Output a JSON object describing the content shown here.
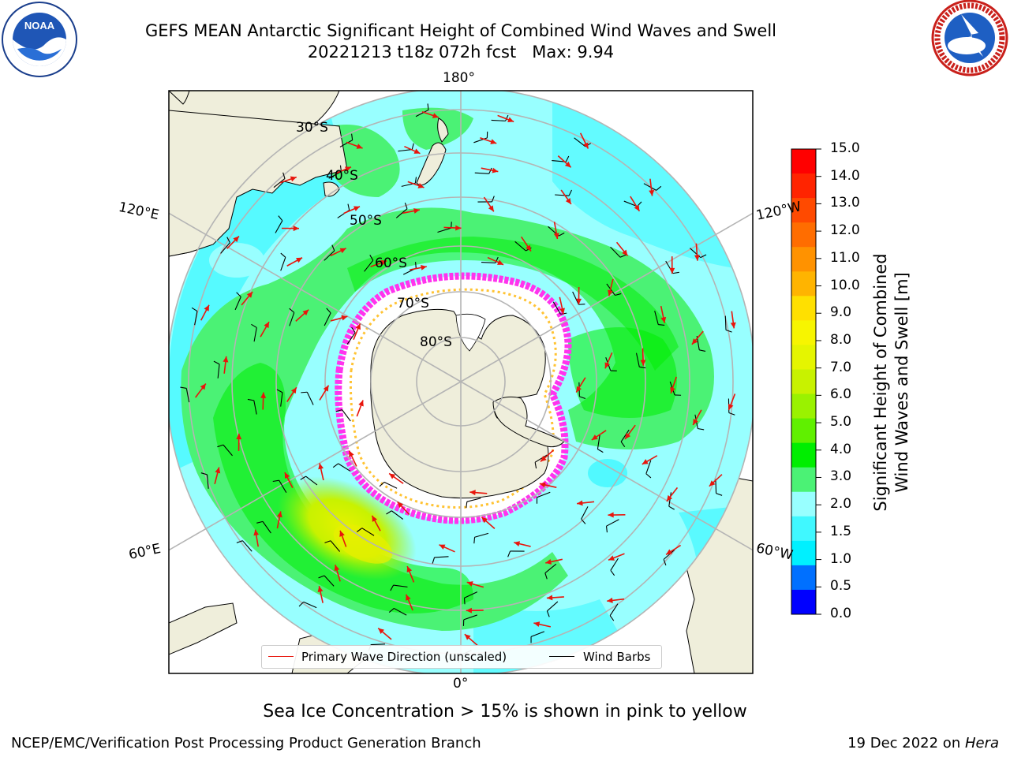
{
  "title": {
    "line1": "GEFS MEAN Antarctic Significant Height of Combined Wind Waves and Swell",
    "line2": "20221213 t18z 072h fcst   Max: 9.94"
  },
  "logos": {
    "left_name": "NOAA",
    "left_ring": "NATIONAL OCEANIC AND ATMOSPHERIC ADMINISTRATION · U.S. DEPARTMENT OF COMMERCE",
    "right_ring": "NATIONAL WEATHER SERVICE"
  },
  "map": {
    "projection": "south-polar-stereographic",
    "lon_labels": {
      "top": "180°",
      "bottom": "0°",
      "left_upper": "120°E",
      "left_lower": "60°E",
      "right_upper": "120°W",
      "right_lower": "60°W"
    },
    "lat_labels": [
      "30°S",
      "40°S",
      "50°S",
      "60°S",
      "70°S",
      "80°S"
    ],
    "legend": {
      "wave_dir": "Primary Wave Direction (unscaled)",
      "wind_barbs": "Wind Barbs"
    },
    "colors": {
      "land": "#efeedb",
      "grid": "#b4b4b4",
      "arrow": "#e8150c",
      "ice_outline": "#ff33ee"
    }
  },
  "colorbar": {
    "label_line1": "Significant Height of Combined",
    "label_line2": "Wind Waves and Swell [m]",
    "ticks": [
      "15.0",
      "14.0",
      "13.0",
      "12.0",
      "11.0",
      "10.0",
      "9.0",
      "8.0",
      "7.0",
      "6.0",
      "5.0",
      "4.0",
      "3.0",
      "2.0",
      "1.5",
      "1.0",
      "0.5",
      "0.0"
    ],
    "colors": [
      "#ff0000",
      "#ff2400",
      "#ff4a00",
      "#ff6d00",
      "#ff9200",
      "#ffb400",
      "#ffe000",
      "#f7f500",
      "#e5f500",
      "#c8f200",
      "#9af200",
      "#60f000",
      "#00ee00",
      "#4bf275",
      "#98ffff",
      "#40f8ff",
      "#00f0ff",
      "#0070ff",
      "#0000ff"
    ]
  },
  "chart_data": {
    "type": "heatmap",
    "variable": "Significant Height of Combined Wind Waves and Swell",
    "units": "m",
    "max": 9.94,
    "levels": [
      0.0,
      0.5,
      1.0,
      1.5,
      2.0,
      3.0,
      4.0,
      5.0,
      6.0,
      7.0,
      8.0,
      9.0,
      10.0,
      11.0,
      12.0,
      13.0,
      14.0,
      15.0
    ]
  },
  "note": "Sea Ice Concentration > 15% is shown in pink to yellow",
  "footer": {
    "left": "NCEP/EMC/Verification Post Processing Product Generation Branch",
    "right_date": "19 Dec 2022 on ",
    "right_machine": "Hera"
  }
}
